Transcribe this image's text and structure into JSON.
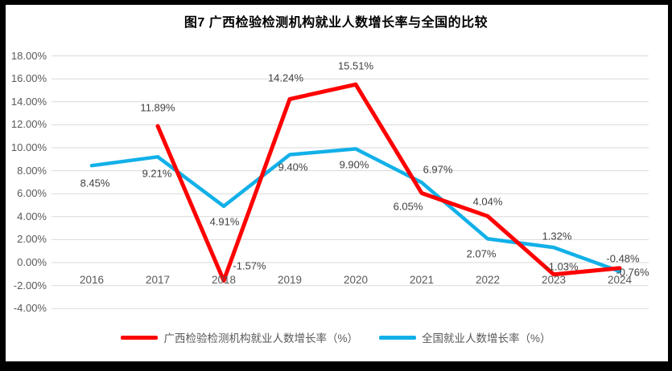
{
  "window": {
    "frame_color": "#000000",
    "background": "#FFFFFF"
  },
  "chart_data": {
    "type": "line",
    "title": "图7 广西检验检测机构就业人数增长率与全国的比较",
    "categories": [
      "2016",
      "2017",
      "2018",
      "2019",
      "2020",
      "2021",
      "2022",
      "2023",
      "2024"
    ],
    "series": [
      {
        "name": "广西检验检测机构就业人数增长率（%）",
        "color": "#FE0000",
        "values": [
          null,
          11.89,
          -1.57,
          14.24,
          15.51,
          6.05,
          4.04,
          -1.03,
          -0.48
        ],
        "labels": [
          null,
          "11.89%",
          "-1.57%",
          "14.24%",
          "15.51%",
          "6.05%",
          "4.04%",
          "-1.03%",
          "-0.48%"
        ],
        "label_offsets": [
          null,
          [
            0,
            -23
          ],
          [
            32,
            -18
          ],
          [
            -5,
            -26
          ],
          [
            0,
            -23
          ],
          [
            -17,
            17
          ],
          [
            0,
            -18
          ],
          [
            10,
            -10
          ],
          [
            4,
            -12
          ]
        ]
      },
      {
        "name": "全国就业人数增长率（%）",
        "color": "#12B0E8",
        "values": [
          8.45,
          9.21,
          4.91,
          9.4,
          9.9,
          6.97,
          2.07,
          1.32,
          -0.76
        ],
        "labels": [
          "8.45%",
          "9.21%",
          "4.91%",
          "9.40%",
          "9.90%",
          "6.97%",
          "2.07%",
          "1.32%",
          "-0.76%"
        ],
        "label_offsets": [
          [
            4,
            22
          ],
          [
            -1,
            21
          ],
          [
            1,
            19
          ],
          [
            4,
            15
          ],
          [
            -2,
            20
          ],
          [
            20,
            -16
          ],
          [
            -8,
            19
          ],
          [
            4,
            -14
          ],
          [
            16,
            1
          ]
        ]
      }
    ],
    "y_ticks": [
      "18.00%",
      "16.00%",
      "14.00%",
      "12.00%",
      "10.00%",
      "8.00%",
      "6.00%",
      "4.00%",
      "2.00%",
      "0.00%",
      "-2.00%",
      "-4.00%"
    ],
    "y_tick_values": [
      18,
      16,
      14,
      12,
      10,
      8,
      6,
      4,
      2,
      0,
      -2,
      -4
    ],
    "ylim": [
      -4,
      18
    ],
    "grid": true,
    "gridline_color": "#D9D9D9",
    "legend_position": "bottom"
  }
}
